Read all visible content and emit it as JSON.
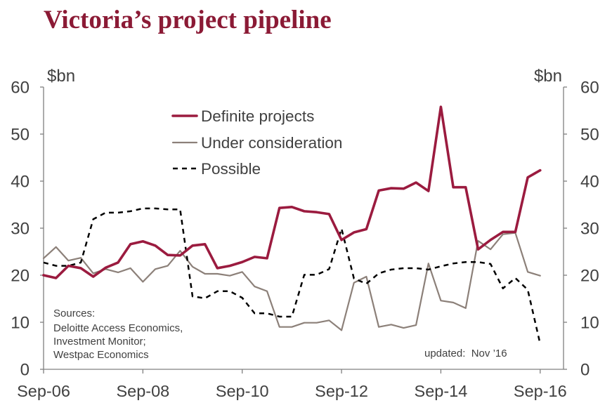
{
  "colors": {
    "title": "#8b1a35"
  },
  "chart_data": {
    "type": "line",
    "title": "Victoria’s project pipeline",
    "ylabel_left": "$bn",
    "ylabel_right": "$bn",
    "ylim": [
      0,
      60
    ],
    "yticks": [
      0,
      10,
      20,
      30,
      40,
      50,
      60
    ],
    "xlim": [
      2006.75,
      2017.22
    ],
    "xticks": [
      2006.75,
      2008.75,
      2010.75,
      2012.75,
      2014.75,
      2016.75
    ],
    "xtick_labels": [
      "Sep-06",
      "Sep-08",
      "Sep-10",
      "Sep-12",
      "Sep-14",
      "Sep-16"
    ],
    "grid": false,
    "legend_position": "top-center",
    "x": [
      2006.75,
      2007,
      2007.25,
      2007.5,
      2007.75,
      2008,
      2008.25,
      2008.5,
      2008.75,
      2009,
      2009.25,
      2009.5,
      2009.75,
      2010,
      2010.25,
      2010.5,
      2010.75,
      2011,
      2011.25,
      2011.5,
      2011.75,
      2012,
      2012.25,
      2012.5,
      2012.75,
      2013,
      2013.25,
      2013.5,
      2013.75,
      2014,
      2014.25,
      2014.5,
      2014.75,
      2015,
      2015.25,
      2015.5,
      2015.75,
      2016,
      2016.25,
      2016.5,
      2016.75
    ],
    "series": [
      {
        "name": "Definite projects",
        "color": "#9b1b3f",
        "values": [
          20,
          19.4,
          22,
          21.5,
          19.7,
          21.6,
          22.7,
          26.6,
          27.2,
          26.3,
          24.3,
          24.2,
          26.3,
          26.6,
          21.5,
          22,
          22.8,
          23.9,
          23.6,
          34.3,
          34.5,
          33.6,
          33.4,
          33,
          27.5,
          29.1,
          29.8,
          38,
          38.5,
          38.4,
          39.7,
          37.9,
          55.8,
          38.7,
          38.7,
          25.5,
          27.5,
          29.2,
          29.2,
          40.8,
          42.3
        ]
      },
      {
        "name": "Under consideration",
        "color": "#8c8079",
        "values": [
          23.6,
          26,
          23.1,
          23.7,
          20.4,
          21.3,
          20.6,
          21.5,
          18.6,
          21.3,
          22,
          25.2,
          21.8,
          20.3,
          20.3,
          19.9,
          20.7,
          17.6,
          16.6,
          9,
          9,
          9.9,
          9.9,
          10.4,
          8.3,
          18.4,
          19.7,
          9,
          9.5,
          8.8,
          9.4,
          22.5,
          14.6,
          14.2,
          13,
          27.3,
          25.5,
          28.7,
          29,
          20.7,
          19.9
        ]
      },
      {
        "name": "Possible",
        "color": "#000000",
        "values": [
          22.7,
          22,
          22,
          22.7,
          31.9,
          33.3,
          33.3,
          33.6,
          34.2,
          34.2,
          34,
          34,
          15.5,
          15.1,
          16.6,
          16.6,
          15.2,
          11.9,
          11.9,
          11.2,
          11.2,
          20.1,
          20.1,
          21.3,
          29.9,
          19.3,
          18.2,
          20.4,
          21.2,
          21.5,
          21.5,
          21.2,
          21.9,
          22.5,
          22.8,
          22.8,
          22.4,
          17.2,
          19.4,
          16.9,
          5.4
        ]
      }
    ],
    "notes": {
      "sources": [
        "Sources:",
        "Deloitte Access Economics,",
        "Investment Monitor;",
        "Westpac Economics"
      ],
      "updated": "updated:  Nov ’16"
    }
  }
}
